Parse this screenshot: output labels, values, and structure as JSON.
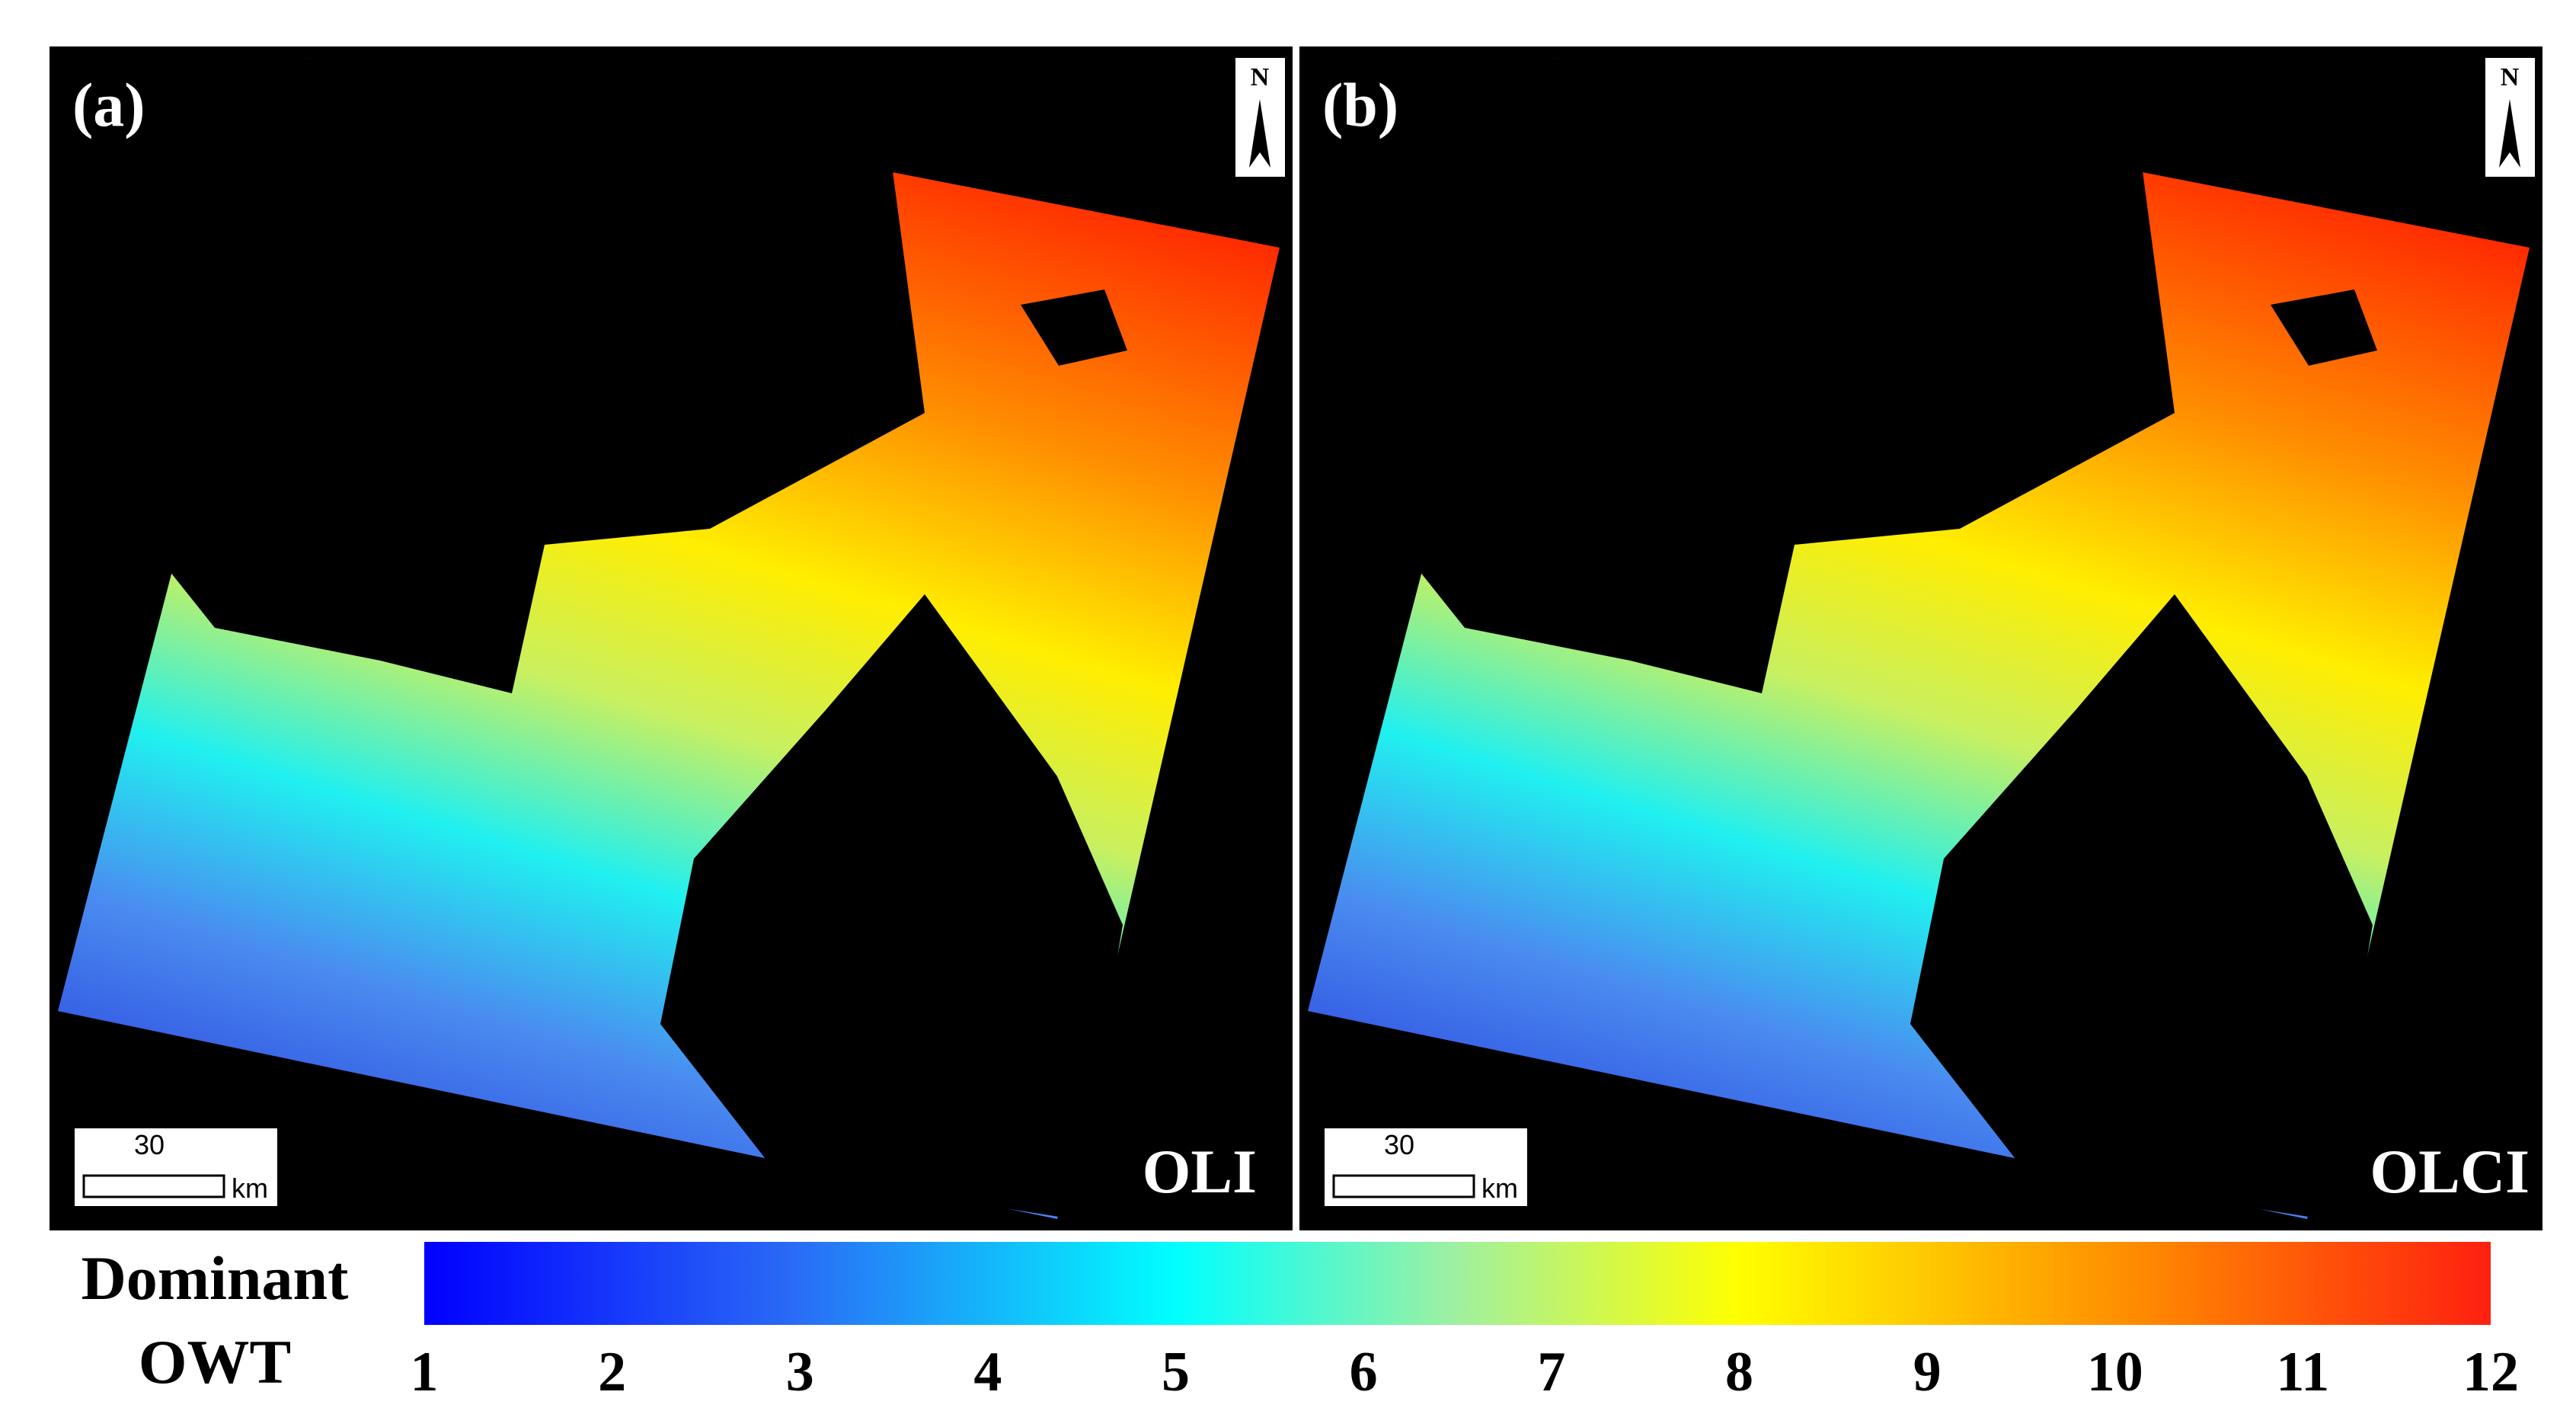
{
  "panels": [
    {
      "label": "(a)",
      "sensor": "OLI",
      "north": "N",
      "scale_value": "30",
      "scale_unit": "km"
    },
    {
      "label": "(b)",
      "sensor": "OLCI",
      "north": "N",
      "scale_value": "30",
      "scale_unit": "km"
    }
  ],
  "colorbar": {
    "title_line1": "Dominant",
    "title_line2": "OWT",
    "ticks": [
      1,
      2,
      3,
      4,
      5,
      6,
      7,
      8,
      9,
      10,
      11,
      12
    ]
  }
}
